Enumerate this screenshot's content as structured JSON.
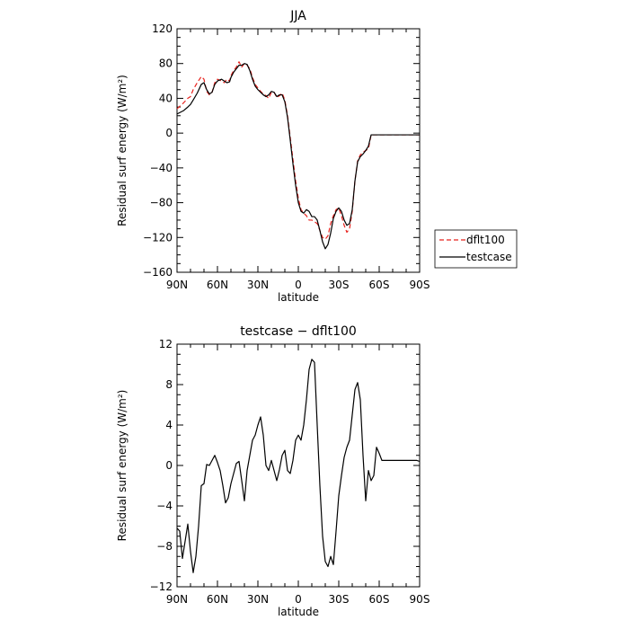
{
  "chart_data": [
    {
      "type": "line",
      "title": "JJA",
      "xlabel": "latitude",
      "ylabel": "Residual surf energy (W/m²)",
      "xlim": [
        90,
        -90
      ],
      "ylim": [
        -160,
        120
      ],
      "xtick_labels": [
        "90N",
        "60N",
        "30N",
        "0",
        "30S",
        "60S",
        "90S"
      ],
      "ytick_labels": [
        "120",
        "80",
        "40",
        "0",
        "−40",
        "−80",
        "−120",
        "−160"
      ],
      "legend": {
        "placement": "right, outside plot",
        "entries": [
          "dflt100",
          "testcase"
        ]
      },
      "x": [
        90,
        85,
        82,
        80,
        78,
        75,
        72,
        70,
        68,
        66,
        64,
        62,
        60,
        57,
        55,
        53,
        51,
        50,
        48,
        46,
        44,
        42,
        40,
        38,
        36,
        34,
        32,
        30,
        28,
        26,
        24,
        22,
        20,
        18,
        16,
        14,
        12,
        10,
        8,
        6,
        4,
        2,
        0,
        -2,
        -4,
        -6,
        -8,
        -10,
        -12,
        -14,
        -16,
        -18,
        -20,
        -22,
        -24,
        -26,
        -28,
        -30,
        -32,
        -34,
        -36,
        -38,
        -40,
        -42,
        -44,
        -46,
        -48,
        -50,
        -52,
        -54,
        -56,
        -58,
        -60,
        -62,
        -64,
        -66,
        -68,
        -70,
        -72,
        -74,
        -76,
        -78,
        -80,
        -82,
        -84,
        -86,
        -88,
        -90
      ],
      "series": [
        {
          "name": "dflt100",
          "color": "#e8231e",
          "dash": "dashed",
          "values": [
            28,
            35,
            40,
            42,
            50,
            58,
            65,
            62,
            48,
            44,
            47,
            58,
            62,
            60,
            58,
            62,
            60,
            66,
            72,
            76,
            82,
            76,
            80,
            78,
            74,
            64,
            56,
            52,
            48,
            45,
            43,
            40,
            47,
            47,
            41,
            43,
            46,
            38,
            20,
            -5,
            -30,
            -55,
            -75,
            -88,
            -92,
            -95,
            -100,
            -100,
            -102,
            -104,
            -112,
            -120,
            -122,
            -118,
            -104,
            -95,
            -88,
            -86,
            -95,
            -106,
            -114,
            -110,
            -90,
            -55,
            -32,
            -25,
            -22,
            -20,
            -18,
            -2,
            -2,
            -2,
            -2,
            -2,
            -2,
            -2,
            -2,
            -2,
            -2,
            -2,
            -2,
            -2,
            -2,
            -2,
            -2,
            -2,
            -2,
            -2
          ]
        },
        {
          "name": "testcase",
          "color": "#000000",
          "dash": "solid",
          "values": [
            22,
            26,
            30,
            33,
            38,
            46,
            56,
            58,
            50,
            45,
            47,
            56,
            60,
            62,
            60,
            58,
            59,
            64,
            70,
            74,
            78,
            78,
            80,
            79,
            72,
            62,
            54,
            50,
            47,
            44,
            42,
            44,
            48,
            47,
            42,
            44,
            44,
            36,
            18,
            -8,
            -35,
            -60,
            -80,
            -90,
            -92,
            -88,
            -90,
            -96,
            -96,
            -100,
            -112,
            -125,
            -133,
            -128,
            -115,
            -98,
            -90,
            -86,
            -90,
            -100,
            -106,
            -104,
            -88,
            -55,
            -33,
            -27,
            -24,
            -20,
            -15,
            -2,
            -2,
            -2,
            -2,
            -2,
            -2,
            -2,
            -2,
            -2,
            -2,
            -2,
            -2,
            -2,
            -2,
            -2,
            -2,
            -2,
            -2,
            -2
          ]
        }
      ]
    },
    {
      "type": "line",
      "title": "testcase − dflt100",
      "xlabel": "latitude",
      "ylabel": "Residual surf energy (W/m²)",
      "xlim": [
        90,
        -90
      ],
      "ylim": [
        -12,
        12
      ],
      "xtick_labels": [
        "90N",
        "60N",
        "30N",
        "0",
        "30S",
        "60S",
        "90S"
      ],
      "ytick_labels": [
        "12",
        "8",
        "4",
        "0",
        "−4",
        "−8",
        "−12"
      ],
      "x": [
        90,
        88,
        86,
        84,
        82,
        80,
        78,
        76,
        74,
        72,
        70,
        68,
        66,
        64,
        62,
        60,
        58,
        56,
        54,
        52,
        50,
        48,
        46,
        44,
        42,
        40,
        38,
        36,
        34,
        32,
        30,
        28,
        26,
        24,
        22,
        20,
        18,
        16,
        14,
        12,
        10,
        8,
        6,
        4,
        2,
        0,
        -2,
        -4,
        -6,
        -8,
        -10,
        -12,
        -14,
        -16,
        -18,
        -20,
        -22,
        -24,
        -26,
        -28,
        -30,
        -32,
        -34,
        -36,
        -38,
        -40,
        -42,
        -44,
        -46,
        -48,
        -50,
        -52,
        -54,
        -56,
        -58,
        -60,
        -62,
        -64,
        -66,
        -68,
        -70,
        -72,
        -74,
        -76,
        -78,
        -80,
        -82,
        -84,
        -86,
        -88,
        -90
      ],
      "series": [
        {
          "name": "testcase − dflt100",
          "color": "#000000",
          "dash": "solid",
          "values": [
            -6.2,
            -6.5,
            -9.2,
            -7.5,
            -5.8,
            -8.5,
            -10.6,
            -9.0,
            -6.0,
            -2.0,
            -1.8,
            0.1,
            0.0,
            0.5,
            1.0,
            0.3,
            -0.5,
            -2.0,
            -3.7,
            -3.2,
            -1.8,
            -0.8,
            0.2,
            0.4,
            -1.5,
            -3.5,
            -0.5,
            1.0,
            2.5,
            3.0,
            4.0,
            4.8,
            3.0,
            0.0,
            -0.5,
            0.5,
            -0.5,
            -1.5,
            -0.4,
            1.0,
            1.5,
            -0.5,
            -0.8,
            0.5,
            2.5,
            3.0,
            2.5,
            4.0,
            6.5,
            9.5,
            10.5,
            10.2,
            4.0,
            -2.0,
            -7.0,
            -9.5,
            -10.0,
            -9.0,
            -9.8,
            -6.5,
            -3.0,
            -1.0,
            0.8,
            1.8,
            2.5,
            5.0,
            7.5,
            8.2,
            6.5,
            1.0,
            -3.5,
            -0.5,
            -1.5,
            -1.0,
            1.8,
            1.2,
            0.5,
            0.5,
            0.5,
            0.5,
            0.5,
            0.5,
            0.5,
            0.5,
            0.5,
            0.5,
            0.5,
            0.5,
            0.5,
            0.5,
            0.4
          ]
        }
      ]
    }
  ]
}
